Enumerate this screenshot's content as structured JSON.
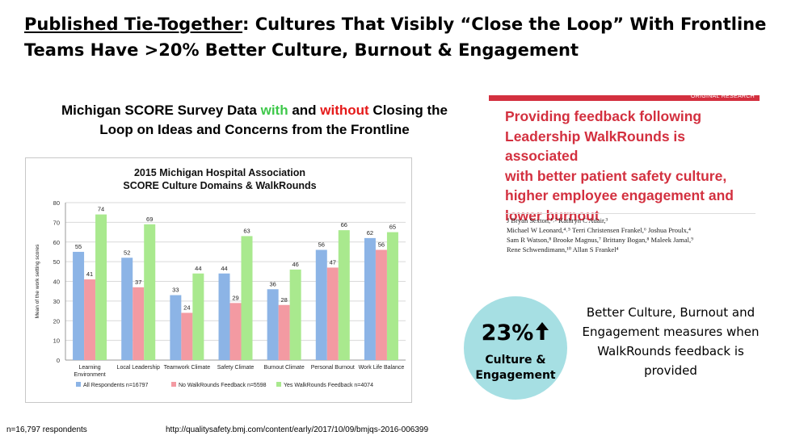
{
  "slide": {
    "title_underlined": "Published Tie-Together",
    "title_rest": ": Cultures That Visibly “Close the Loop” With Frontline",
    "title_line2": "Teams Have >20% Better Culture, Burnout & Engagement",
    "subhead_part1": "Michigan SCORE Survey Data ",
    "subhead_with": "with",
    "subhead_part2": " and ",
    "subhead_without": "without",
    "subhead_part3": " Closing the",
    "subhead_line2": "Loop on Ideas and Concerns from the Frontline",
    "footer_n": "n=16,797 respondents",
    "footer_url": "http://qualitysafety.bmj.com/content/early/2017/10/09/bmjqs-2016-006399"
  },
  "paper": {
    "section_label": "ORIGINAL RESEARCH",
    "title_lines": [
      "Providing feedback following",
      "Leadership WalkRounds is associated",
      "with better patient safety culture,",
      "higher employee engagement and",
      "lower burnout"
    ],
    "author_lines": [
      "J Bryan Sexton,¹˒² Kathryn C Adair,³",
      "Michael W Leonard,⁴˒⁵ Terri Christensen Frankel,⁶ Joshua Proulx,⁴",
      "Sam R Watson,⁸ Brooke Magnus,⁷ Brittany Bogan,⁸ Maleek Jamal,⁹",
      "Rene Schwendimann,¹⁰ Allan S Frankel⁴"
    ],
    "accent_color": "#d3303f"
  },
  "callout": {
    "percent": "23%",
    "label_line1": "Culture &",
    "label_line2": "Engagement",
    "circle_color": "#a6dfe3",
    "icon": "arrow-up-icon",
    "note_line1": "Better Culture, Burnout and",
    "note_line2": "Engagement measures when",
    "note_line3": "WalkRounds feedback is",
    "note_line4": "provided"
  },
  "chart_data": {
    "type": "bar",
    "title_line1": "2015 Michigan Hospital Association",
    "title_line2": "SCORE Culture Domains & WalkRounds",
    "ylabel": "Mean of the work setting scores",
    "xlabel": "",
    "ylim": [
      0,
      80
    ],
    "yticks": [
      0,
      10,
      20,
      30,
      40,
      50,
      60,
      70,
      80
    ],
    "grid": true,
    "legend_position": "bottom",
    "categories": [
      [
        "Learning",
        "Environment"
      ],
      [
        "Local Leadership"
      ],
      [
        "Teamwork Climate"
      ],
      [
        "Safety Climate"
      ],
      [
        "Burnout Climate"
      ],
      [
        "Personal Burnout"
      ],
      [
        "Work Life Balance"
      ]
    ],
    "series": [
      {
        "name": "All Respondents n=16797",
        "color": "#8cb4e6",
        "values": [
          55,
          52,
          33,
          44,
          36,
          56,
          62
        ]
      },
      {
        "name": "No WalkRounds Feedback n=5598",
        "color": "#f39aa2",
        "values": [
          41,
          37,
          24,
          29,
          28,
          47,
          56
        ]
      },
      {
        "name": "Yes WalkRounds Feedback n=4074",
        "color": "#a9e98e",
        "values": [
          74,
          69,
          44,
          63,
          46,
          66,
          65
        ]
      }
    ]
  }
}
